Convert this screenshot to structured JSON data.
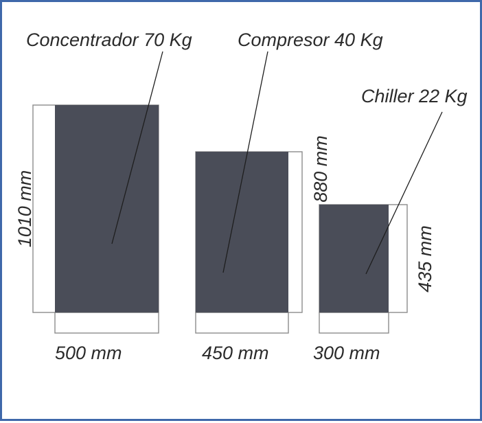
{
  "colors": {
    "frame_border": "#3f68aa",
    "equipment_fill": "#4a4d58",
    "background": "#ffffff"
  },
  "units": [
    {
      "id": "concentrador",
      "name_label": "Concentrador 70 Kg",
      "height_label": "1010 mm",
      "width_label": "500 mm"
    },
    {
      "id": "compresor",
      "name_label": "Compresor 40 Kg",
      "height_label": "880 mm",
      "width_label": "450 mm"
    },
    {
      "id": "chiller",
      "name_label": "Chiller 22 Kg",
      "height_label": "435 mm",
      "width_label": "300 mm"
    }
  ]
}
